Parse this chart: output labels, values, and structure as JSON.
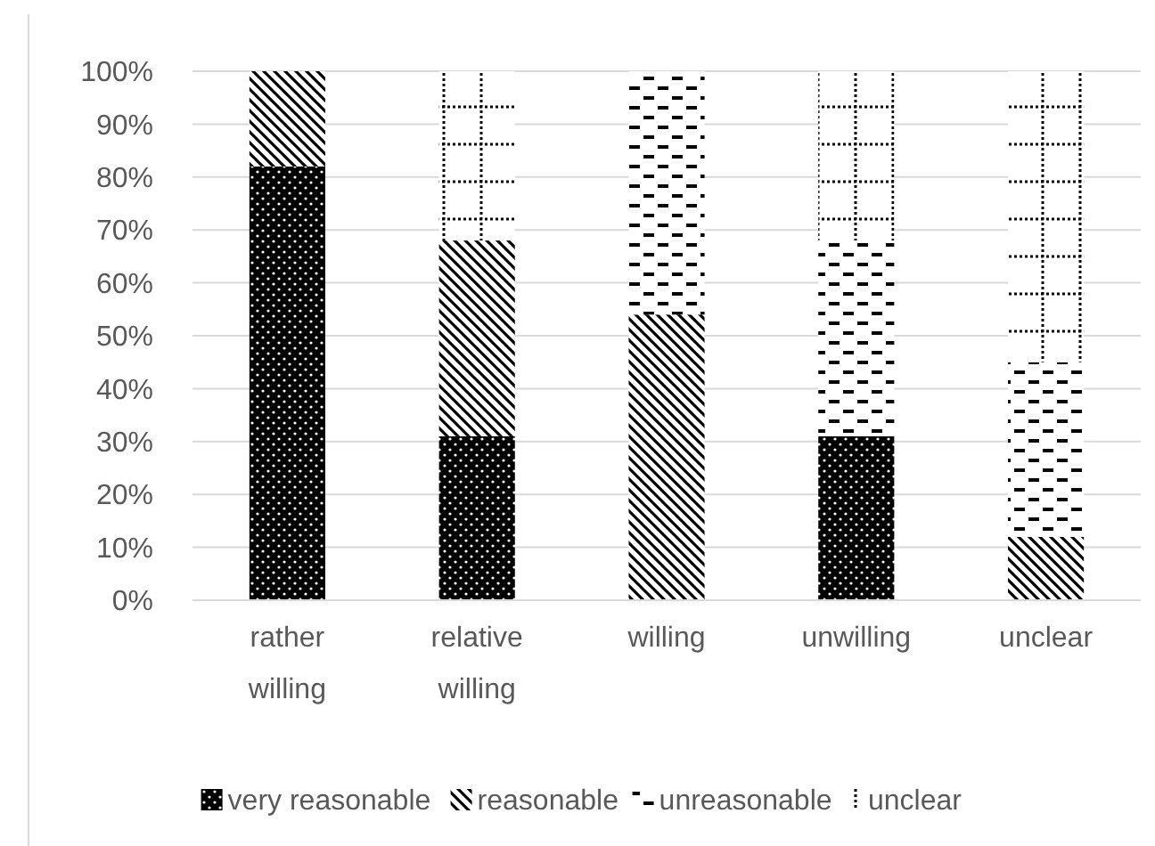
{
  "chart_data": {
    "type": "bar",
    "stacked": true,
    "categories": [
      "rather willing",
      "relative willing",
      "willing",
      "unwilling",
      "unclear"
    ],
    "series": [
      {
        "name": "very reasonable",
        "color": "#000000",
        "values": [
          82,
          31,
          0,
          31,
          0
        ]
      },
      {
        "name": "reasonable",
        "color": "#000000",
        "values": [
          18,
          37,
          54,
          0,
          12
        ]
      },
      {
        "name": "unreasonable",
        "color": "#000000",
        "values": [
          0,
          0,
          46,
          37,
          33
        ]
      },
      {
        "name": "unclear",
        "color": "#000000",
        "values": [
          0,
          32,
          0,
          32,
          55
        ]
      }
    ],
    "ylim": [
      0,
      100
    ],
    "yticks": [
      {
        "value": 0,
        "label": "0%"
      },
      {
        "value": 10,
        "label": "10%"
      },
      {
        "value": 20,
        "label": "20%"
      },
      {
        "value": 30,
        "label": "30%"
      },
      {
        "value": 40,
        "label": "40%"
      },
      {
        "value": 50,
        "label": "50%"
      },
      {
        "value": 60,
        "label": "60%"
      },
      {
        "value": 70,
        "label": "70%"
      },
      {
        "value": 80,
        "label": "80%"
      },
      {
        "value": 90,
        "label": "90%"
      },
      {
        "value": 100,
        "label": "100%"
      }
    ],
    "grid": "y",
    "legend": "bottom"
  }
}
